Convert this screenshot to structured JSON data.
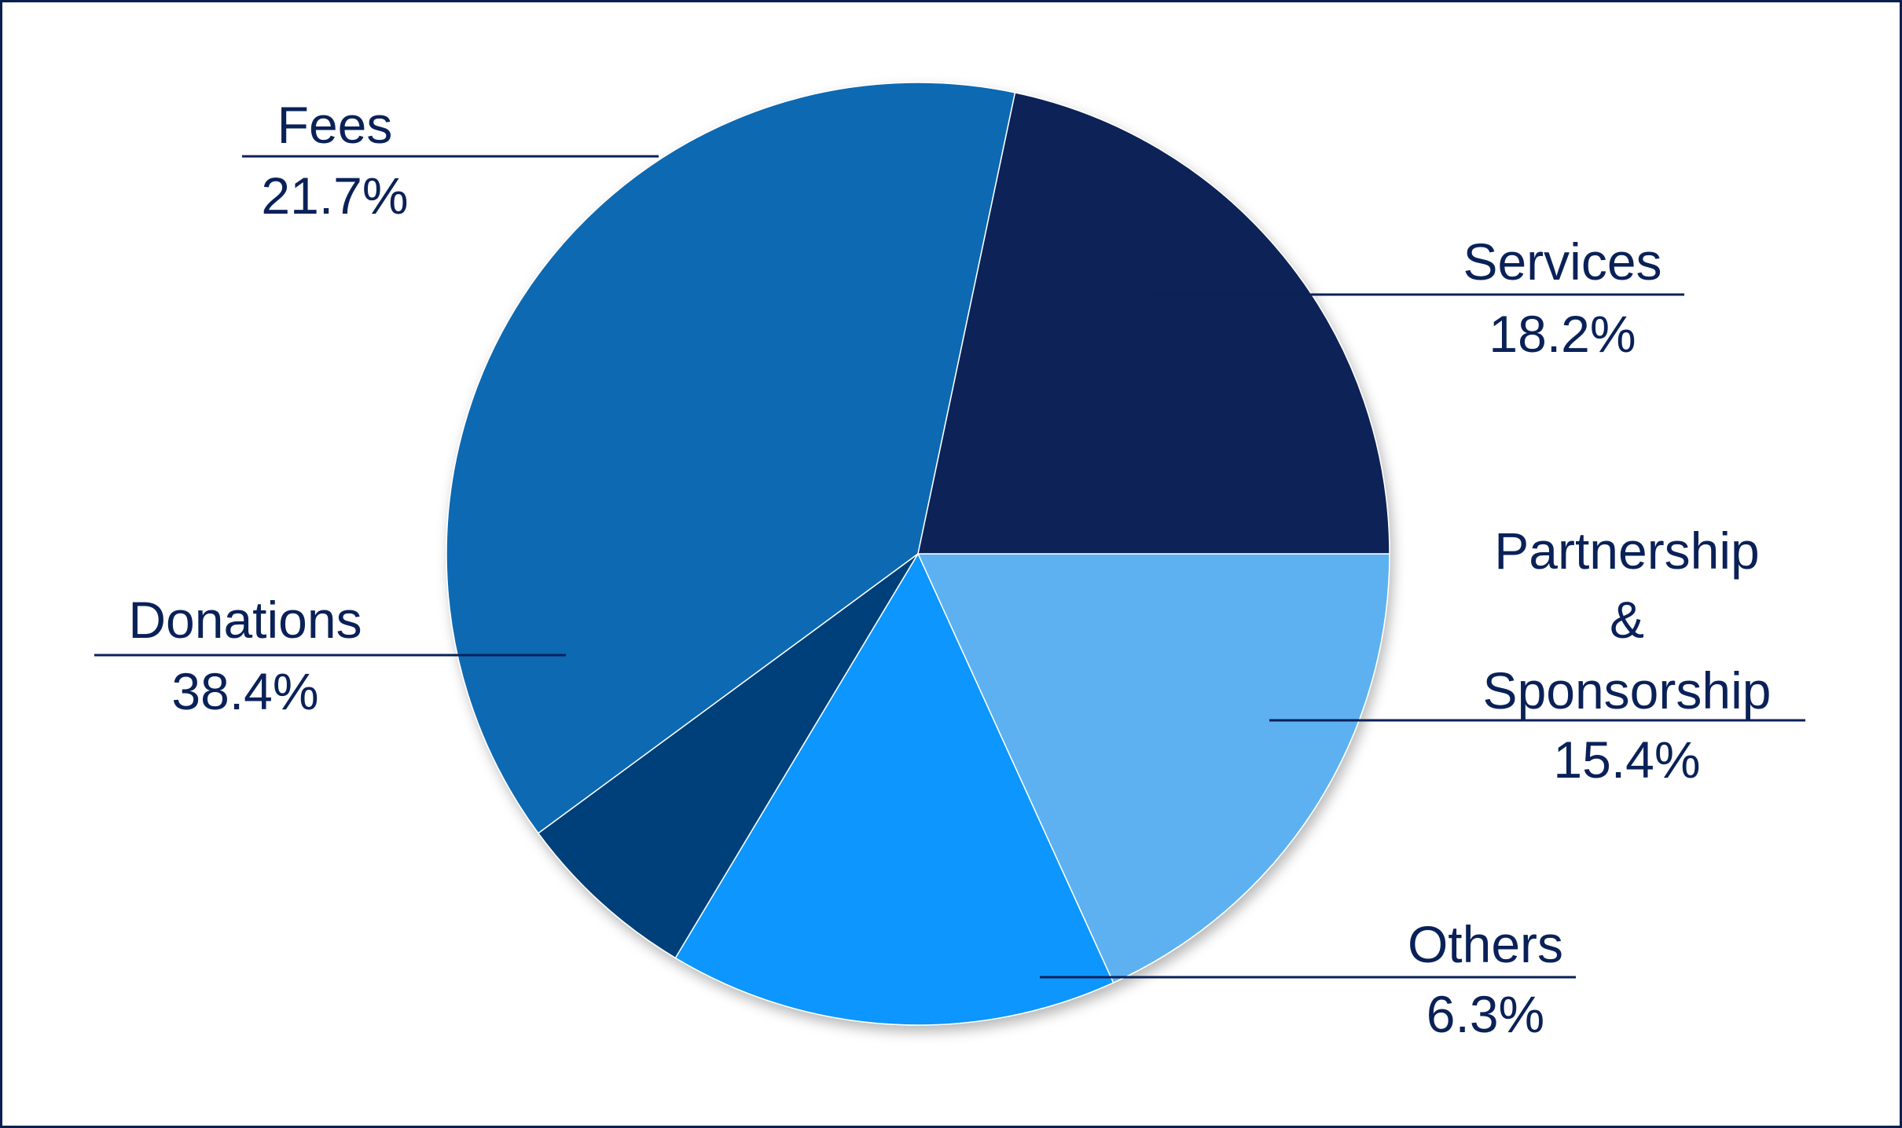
{
  "chart_data": {
    "type": "pie",
    "title": "",
    "slices": [
      {
        "label": "Services",
        "value": 18.2,
        "value_text": "18.2%",
        "color": "#5db1f1"
      },
      {
        "label": "Partnership & Sponsorship",
        "label_lines": [
          "Partnership",
          "&",
          "Sponsorship"
        ],
        "value": 15.4,
        "value_text": "15.4%",
        "color": "#1096fd"
      },
      {
        "label": "Others",
        "value": 6.3,
        "value_text": "6.3%",
        "color": "#02417a"
      },
      {
        "label": "Donations",
        "value": 38.4,
        "value_text": "38.4%",
        "color": "#0c69b2"
      },
      {
        "label": "Fees",
        "value": 21.7,
        "value_text": "21.7%",
        "color": "#082157"
      }
    ],
    "start": "3 o'clock",
    "direction": "clockwise",
    "legend": "none",
    "label_style": "leader lines, name and percent"
  },
  "colors": {
    "text": "#0a2158",
    "border": "#0a1f4f",
    "background": "#ffffff"
  }
}
